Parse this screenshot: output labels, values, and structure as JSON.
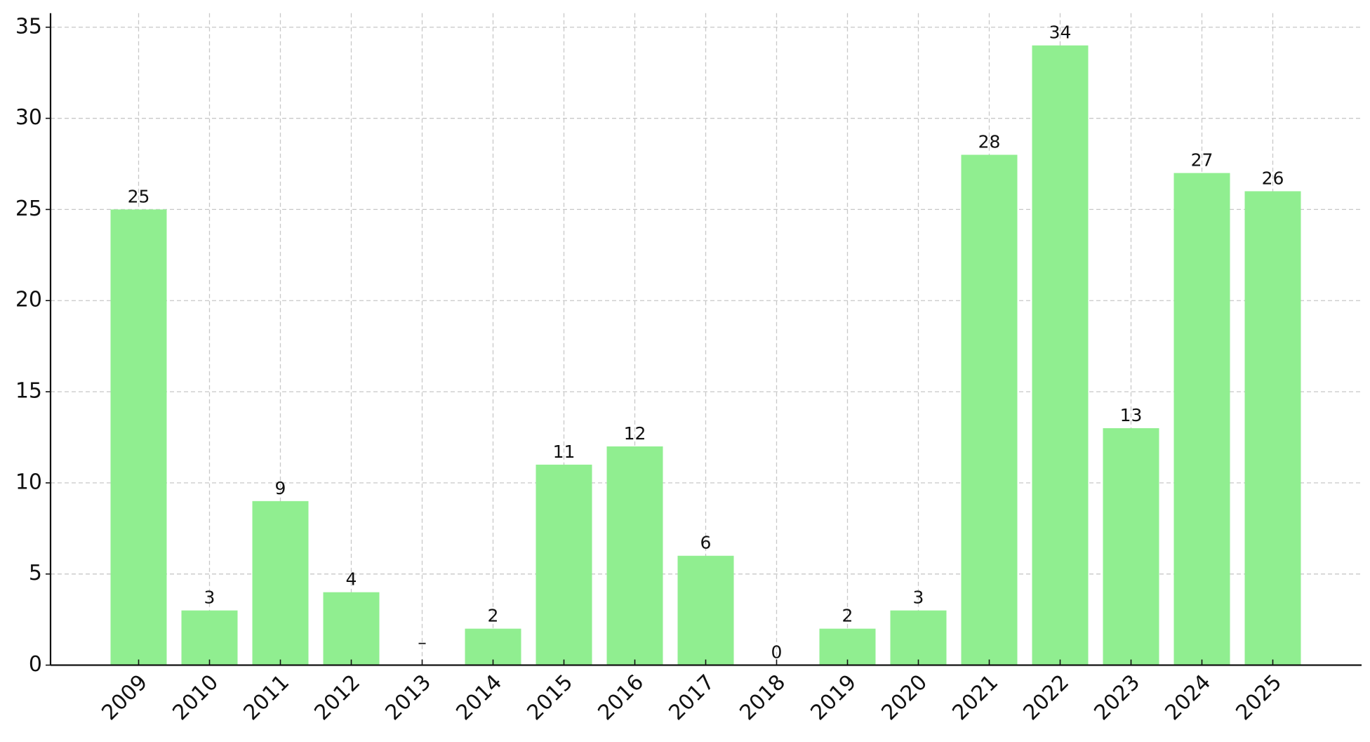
{
  "chart_data": {
    "type": "bar",
    "categories": [
      "2009",
      "2010",
      "2011",
      "2012",
      "2013",
      "2014",
      "2015",
      "2016",
      "2017",
      "2018",
      "2019",
      "2020",
      "2021",
      "2022",
      "2023",
      "2024",
      "2025"
    ],
    "values": [
      25,
      3,
      9,
      4,
      null,
      2,
      11,
      12,
      6,
      0,
      2,
      3,
      28,
      34,
      13,
      27,
      26
    ],
    "value_labels": [
      "25",
      "3",
      "9",
      "4",
      "–",
      "2",
      "11",
      "12",
      "6",
      "0",
      "2",
      "3",
      "28",
      "34",
      "13",
      "27",
      "26"
    ],
    "color": "#90ee90",
    "ylim": [
      0,
      35
    ],
    "yticks": [
      0,
      5,
      10,
      15,
      20,
      25,
      30,
      35
    ],
    "grid": true
  }
}
